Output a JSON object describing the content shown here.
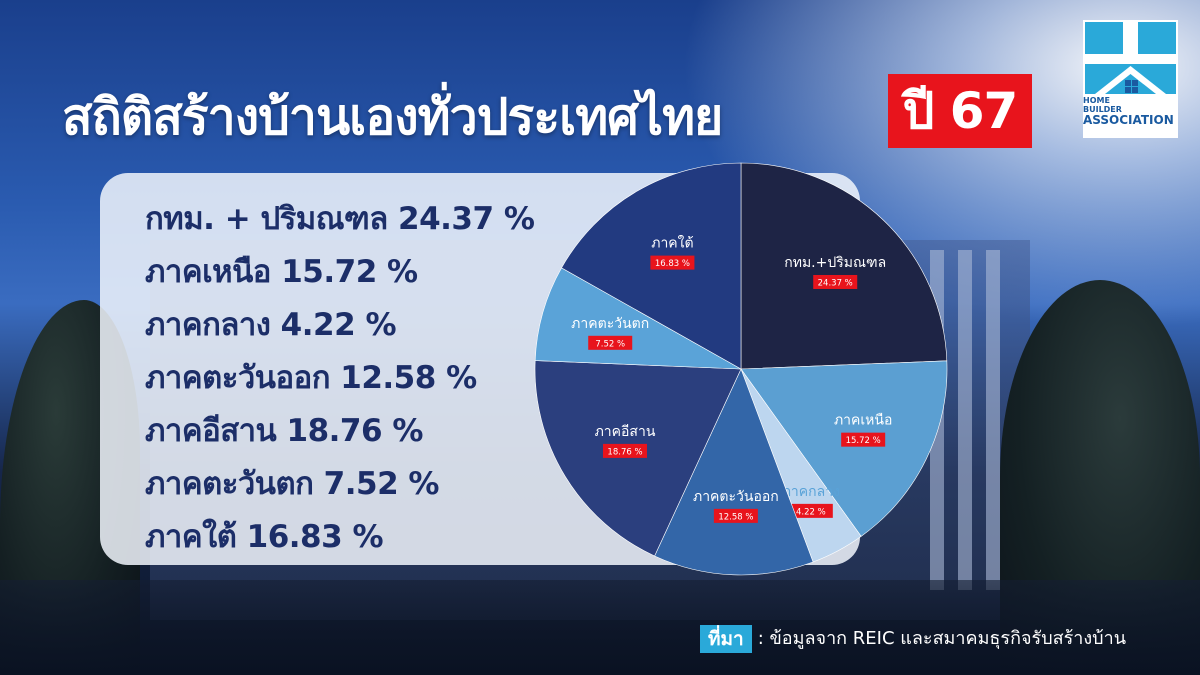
{
  "title": "สถิติสร้างบ้านเองทั่วประเทศไทย",
  "title_year": "ปี 67",
  "logo": {
    "line1": "HOME",
    "line2": "BUILDER",
    "line3": "ASSOCIATION"
  },
  "stats": [
    "กทม. + ปริมณฑล 24.37 %",
    "ภาคเหนือ 15.72 %",
    "ภาคกลาง 4.22 %",
    "ภาคตะวันออก 12.58 %",
    "ภาคอีสาน 18.76 %",
    "ภาคตะวันตก 7.52 %",
    "ภาคใต้ 16.83 %"
  ],
  "source": {
    "tag": "ที่มา",
    "text": ": ข้อมูลจาก REIC และสมาคมธุรกิจรับสร้างบ้าน"
  },
  "colors": {
    "accent_red": "#e8141c",
    "source_tag": "#2aa9d9",
    "text_dark": "#1c2e68"
  },
  "chart_data": {
    "type": "pie",
    "categories": [
      "กทม.+ปริมณฑล",
      "ภาคเหนือ",
      "ภาคกลาง",
      "ภาคตะวันออก",
      "ภาคอีสาน",
      "ภาคตะวันตก",
      "ภาคใต้"
    ],
    "values": [
      24.37,
      15.72,
      4.22,
      12.58,
      18.76,
      7.52,
      16.83
    ],
    "value_labels": [
      "24.37 %",
      "15.72 %",
      "4.22 %",
      "12.58 %",
      "18.76 %",
      "7.52 %",
      "16.83 %"
    ],
    "colors": [
      "#1e2445",
      "#5b9fd2",
      "#bdd6ef",
      "#3366a8",
      "#2b3f7e",
      "#5aa3d8",
      "#223a80"
    ],
    "start_angle_deg": 0,
    "direction": "clockwise"
  }
}
